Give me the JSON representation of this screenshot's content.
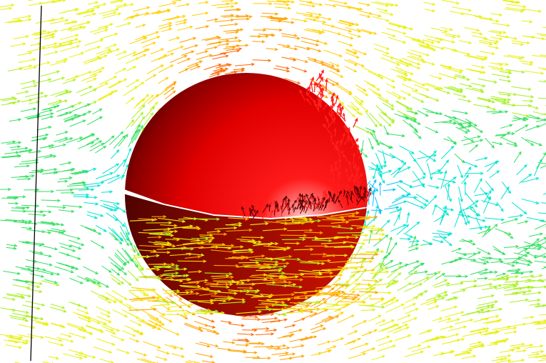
{
  "scene": {
    "background": "#ffffff",
    "palette": [
      "#00c0ff",
      "#00e5d0",
      "#33e060",
      "#a8f020",
      "#e8f010",
      "#ffd000",
      "#ffa000",
      "#ff6a00"
    ],
    "sphere_color": "#ff1010",
    "sphere_shadow_color": "#5a0000",
    "seed": 7
  }
}
